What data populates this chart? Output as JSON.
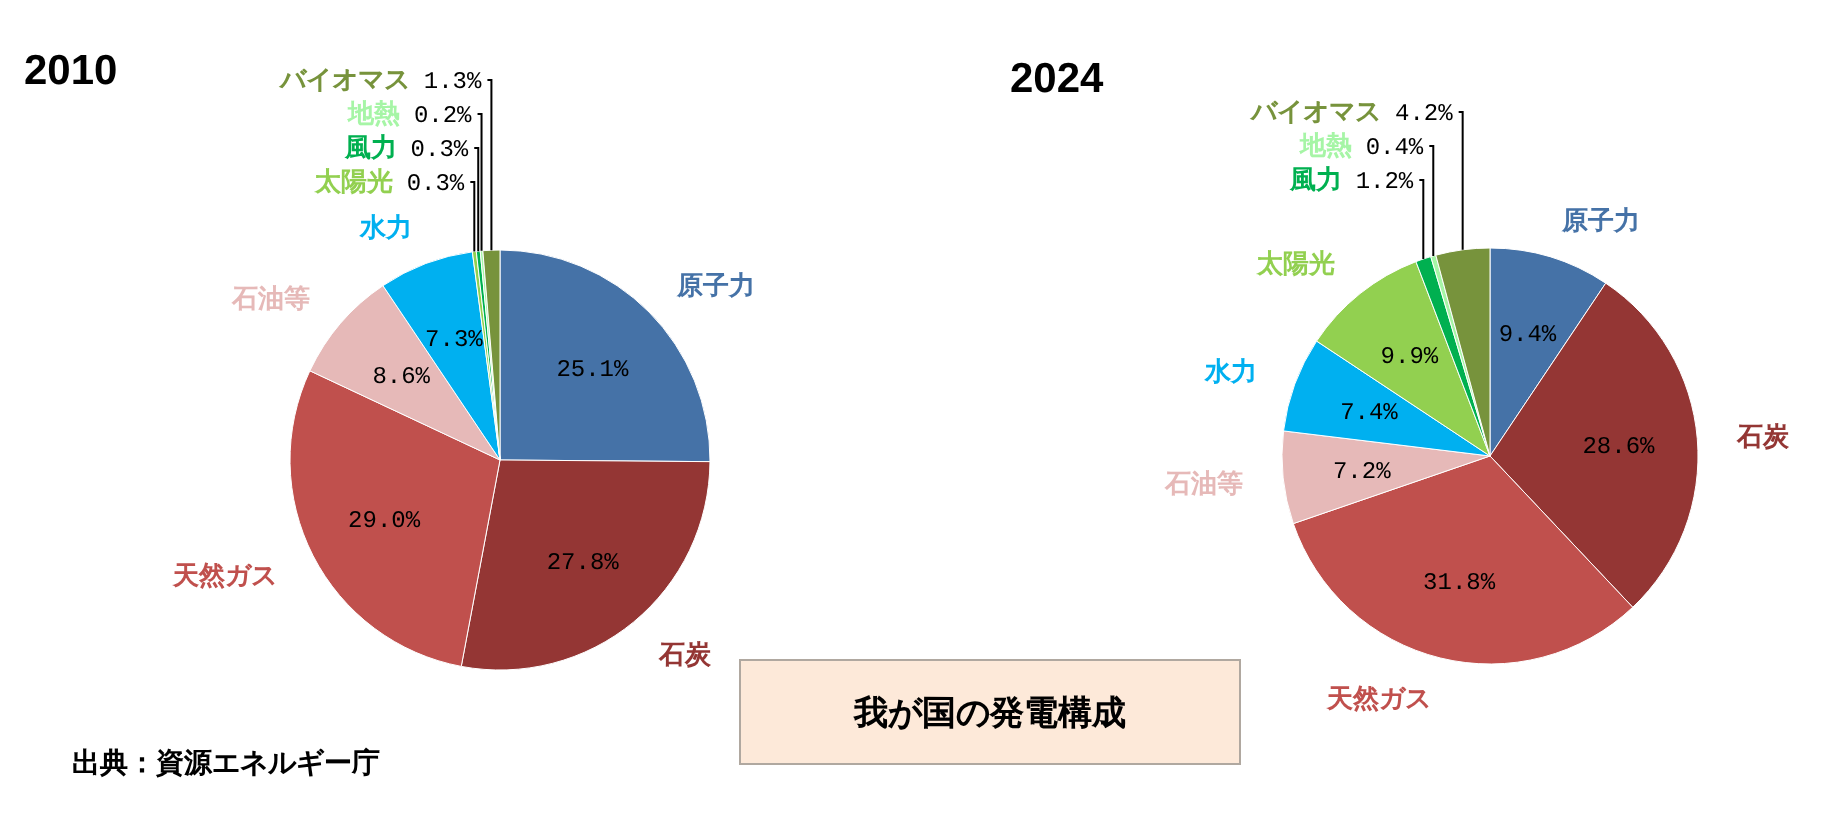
{
  "chart_data": [
    {
      "type": "pie",
      "title": "2010",
      "categories": [
        "原子力",
        "石炭",
        "天然ガス",
        "石油等",
        "水力",
        "太陽光",
        "風力",
        "地熱",
        "バイオマス"
      ],
      "values": [
        25.1,
        27.8,
        29.0,
        8.6,
        7.3,
        0.3,
        0.3,
        0.2,
        1.3
      ],
      "colors": [
        "#4572a7",
        "#943634",
        "#c0504d",
        "#e6b9b8",
        "#00b0f0",
        "#92d050",
        "#00b050",
        "#a6f5a6",
        "#77933c"
      ],
      "value_labels": [
        "25.1%",
        "27.8%",
        "29.0%",
        "8.6%",
        "7.3%",
        "0.3%",
        "0.3%",
        "0.2%",
        "1.3%"
      ],
      "legend": false,
      "annotations": [
        "我が国の発電構成",
        "出典：資源エネルギー庁"
      ]
    },
    {
      "type": "pie",
      "title": "2024",
      "categories": [
        "原子力",
        "石炭",
        "天然ガス",
        "石油等",
        "水力",
        "太陽光",
        "風力",
        "地熱",
        "バイオマス"
      ],
      "values": [
        9.4,
        28.6,
        31.8,
        7.2,
        7.4,
        9.9,
        1.2,
        0.4,
        4.2
      ],
      "colors": [
        "#4572a7",
        "#943634",
        "#c0504d",
        "#e6b9b8",
        "#00b0f0",
        "#92d050",
        "#00b050",
        "#a6f5a6",
        "#77933c"
      ],
      "value_labels": [
        "9.4%",
        "28.6%",
        "31.8%",
        "7.2%",
        "7.4%",
        "9.9%",
        "1.2%",
        "0.4%",
        "4.2%"
      ],
      "legend": false
    }
  ]
}
